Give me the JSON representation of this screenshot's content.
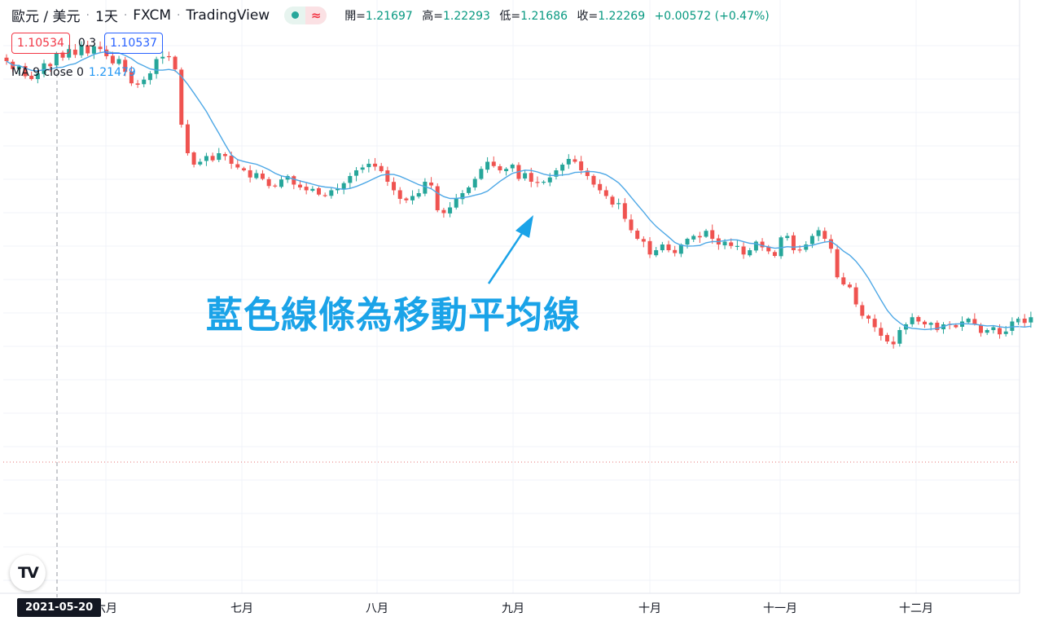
{
  "header": {
    "symbol": "歐元 / 美元",
    "interval": "1天",
    "broker": "FXCM",
    "platform": "TradingView",
    "status_icon": "market-open-dot",
    "wave_icon": "≈",
    "ohlc": {
      "open_label": "開=",
      "open": "1.21697",
      "high_label": "高=",
      "high": "1.22293",
      "low_label": "低=",
      "low": "1.21686",
      "close_label": "收=",
      "close": "1.22269",
      "change": "+0.00572 (+0.47%)"
    }
  },
  "prices": {
    "sell": "1.10534",
    "spread": "0.3",
    "buy": "1.10537"
  },
  "indicator": {
    "label": "MA 9 close 0",
    "value": "1.21479",
    "color": "#2196f3"
  },
  "annotation": {
    "text": "藍色線條為移動平均線",
    "color": "#1aa3e8"
  },
  "crosshair": {
    "date": "2021-05-20"
  },
  "logo": {
    "text": "TV"
  },
  "colors": {
    "up": "#26a69a",
    "down": "#ef5350",
    "ma": "#4ea8e6",
    "grid": "#f0f3fa"
  },
  "chart_data": {
    "type": "candlestick",
    "x_labels": [
      "六月",
      "七月",
      "八月",
      "九月",
      "十月",
      "十一月",
      "十二月"
    ],
    "ylim": [
      1.1,
      1.24
    ],
    "grid": true,
    "ma_period": 9,
    "closes": [
      1.2223,
      1.2195,
      1.2205,
      1.217,
      1.216,
      1.218,
      1.2215,
      1.2205,
      1.225,
      1.2235,
      1.2265,
      1.2245,
      1.228,
      1.225,
      1.2275,
      1.2265,
      1.224,
      1.2215,
      1.223,
      1.2185,
      1.2145,
      1.214,
      1.2158,
      1.218,
      1.223,
      1.2238,
      1.2238,
      1.2194,
      1.2,
      1.19,
      1.186,
      1.187,
      1.189,
      1.1875,
      1.19,
      1.189,
      1.1863,
      1.185,
      1.184,
      1.1815,
      1.183,
      1.181,
      1.1785,
      1.1785,
      1.1808,
      1.182,
      1.179,
      1.178,
      1.177,
      1.1775,
      1.1755,
      1.175,
      1.177,
      1.1775,
      1.1795,
      1.182,
      1.184,
      1.185,
      1.1863,
      1.1853,
      1.1837,
      1.18,
      1.177,
      1.174,
      1.1735,
      1.175,
      1.176,
      1.18,
      1.1787,
      1.17,
      1.169,
      1.171,
      1.174,
      1.176,
      1.178,
      1.181,
      1.1845,
      1.187,
      1.1855,
      1.184,
      1.1845,
      1.186,
      1.181,
      1.183,
      1.18,
      1.1798,
      1.18,
      1.1815,
      1.184,
      1.186,
      1.188,
      1.187,
      1.184,
      1.182,
      1.179,
      1.177,
      1.175,
      1.172,
      1.1725,
      1.167,
      1.163,
      1.16,
      1.159,
      1.1545,
      1.156,
      1.158,
      1.156,
      1.155,
      1.158,
      1.16,
      1.161,
      1.1605,
      1.1628,
      1.16,
      1.158,
      1.159,
      1.1575,
      1.1575,
      1.1545,
      1.156,
      1.159,
      1.157,
      1.1556,
      1.154,
      1.1605,
      1.161,
      1.156,
      1.156,
      1.158,
      1.161,
      1.163,
      1.16,
      1.1565,
      1.1465,
      1.144,
      1.143,
      1.137,
      1.133,
      1.132,
      1.129,
      1.126,
      1.124,
      1.123,
      1.128,
      1.13,
      1.1325,
      1.131,
      1.13,
      1.1305,
      1.128,
      1.13,
      1.13,
      1.129,
      1.131,
      1.132,
      1.13,
      1.127,
      1.128,
      1.129,
      1.1265,
      1.1275,
      1.131,
      1.132,
      1.1305,
      1.1325
    ]
  }
}
